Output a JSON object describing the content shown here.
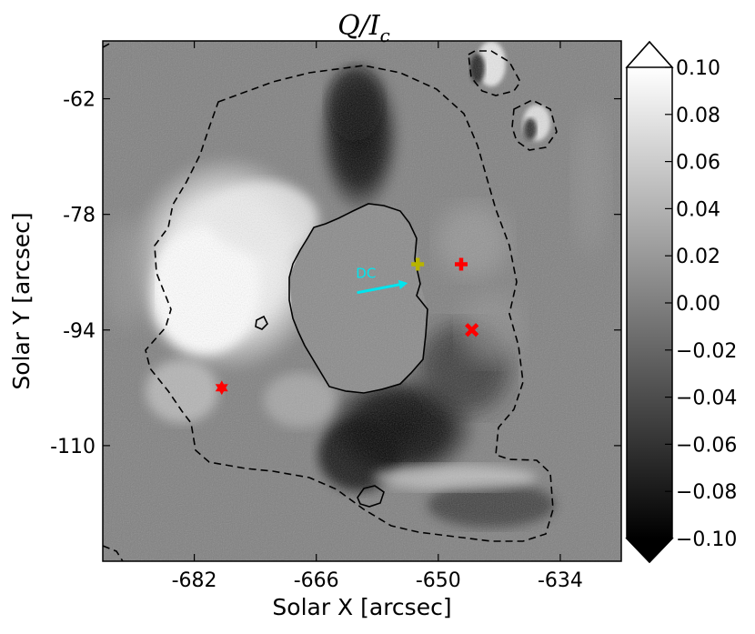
{
  "chart_data": {
    "type": "heatmap",
    "title_main": "Q/I",
    "title_sub": "c",
    "xlabel": "Solar X [arcsec]",
    "ylabel": "Solar Y [arcsec]",
    "xlim": [
      -694,
      -626
    ],
    "ylim": [
      -126,
      -54
    ],
    "xticks": [
      {
        "value": -682,
        "label": "-682"
      },
      {
        "value": -666,
        "label": "-666"
      },
      {
        "value": -650,
        "label": "-650"
      },
      {
        "value": -634,
        "label": "-634"
      }
    ],
    "yticks": [
      {
        "value": -62,
        "label": "-62"
      },
      {
        "value": -78,
        "label": "-78"
      },
      {
        "value": -94,
        "label": "-94"
      },
      {
        "value": -110,
        "label": "-110"
      }
    ],
    "colorbar": {
      "colormap": "gray",
      "vmin": -0.1,
      "vmax": 0.1,
      "extend": "both",
      "ticks": [
        {
          "value": 0.1,
          "label": "0.10"
        },
        {
          "value": 0.08,
          "label": "0.08"
        },
        {
          "value": 0.06,
          "label": "0.06"
        },
        {
          "value": 0.04,
          "label": "0.04"
        },
        {
          "value": 0.02,
          "label": "0.02"
        },
        {
          "value": 0.0,
          "label": "0.00"
        },
        {
          "value": -0.02,
          "label": "−0.02"
        },
        {
          "value": -0.04,
          "label": "−0.04"
        },
        {
          "value": -0.06,
          "label": "−0.06"
        },
        {
          "value": -0.08,
          "label": "−0.08"
        },
        {
          "value": -0.1,
          "label": "−0.10"
        }
      ]
    },
    "annotations": [
      {
        "text": "DC",
        "color": "#00e5ee",
        "x": -660.8,
        "y": -86.8
      }
    ],
    "arrow": {
      "color": "#00e5ee",
      "x0": -660.5,
      "y0": -88.8,
      "x1": -654.0,
      "y1": -87.5
    },
    "markers": [
      {
        "symbol": "plus",
        "color": "#b8b400",
        "x": -652.7,
        "y": -84.9
      },
      {
        "symbol": "plus",
        "color": "#ff0000",
        "x": -647.0,
        "y": -84.9
      },
      {
        "symbol": "x",
        "color": "#ff0000",
        "x": -645.6,
        "y": -94.0
      },
      {
        "symbol": "star",
        "color": "#ff0000",
        "x": -678.4,
        "y": -102.0
      }
    ],
    "contours": {
      "umbra_color": "#000000",
      "penumbra_color": "#000000",
      "penumbra_style": "dashed"
    }
  }
}
